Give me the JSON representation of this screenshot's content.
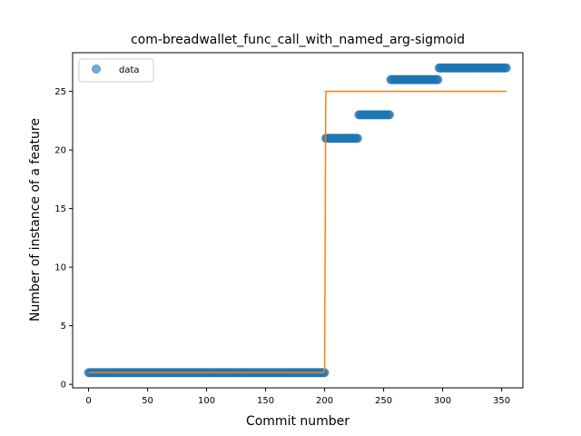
{
  "chart_data": {
    "type": "scatter",
    "title": "com-breadwallet_func_call_with_named_arg-sigmoid",
    "xlabel": "Commit number",
    "ylabel": "Number of instance of a feature",
    "xlim": [
      -13.5,
      368
    ],
    "ylim": [
      -0.3,
      28.3
    ],
    "xticks": [
      0,
      50,
      100,
      150,
      200,
      250,
      300,
      350
    ],
    "yticks": [
      0,
      5,
      10,
      15,
      20,
      25
    ],
    "legend": {
      "position": "upper-left",
      "entries": [
        "data"
      ]
    },
    "grid": false,
    "colors": {
      "data": "#1f77b4",
      "fit": "#ff7f0e"
    },
    "series": [
      {
        "name": "data",
        "type": "scatter",
        "segments": [
          {
            "x_start": 0,
            "x_end": 200,
            "y": 1
          },
          {
            "x_start": 201,
            "x_end": 228,
            "y": 21
          },
          {
            "x_start": 229,
            "x_end": 255,
            "y": 23
          },
          {
            "x_start": 256,
            "x_end": 296,
            "y": 26
          },
          {
            "x_start": 297,
            "x_end": 354,
            "y": 27
          }
        ]
      },
      {
        "type": "line",
        "points": [
          [
            0,
            1
          ],
          [
            199,
            1
          ],
          [
            200,
            1.3
          ],
          [
            201,
            25
          ],
          [
            354,
            25
          ]
        ]
      }
    ]
  }
}
